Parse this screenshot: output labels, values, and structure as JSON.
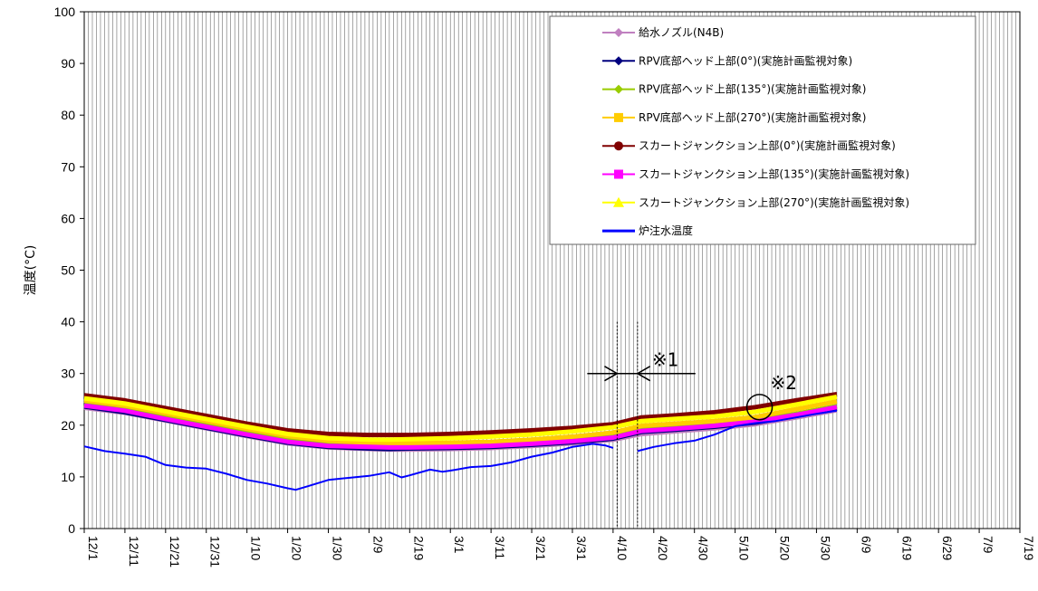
{
  "chart_data": {
    "type": "line",
    "title": "",
    "xlabel": "",
    "ylabel": "温度(°C)",
    "ylim": [
      0,
      100
    ],
    "y_ticks": [
      "0",
      "10",
      "20",
      "30",
      "40",
      "50",
      "60",
      "70",
      "80",
      "90",
      "100"
    ],
    "x_ticks": [
      "12/1",
      "12/11",
      "12/21",
      "12/31",
      "1/10",
      "1/20",
      "1/30",
      "2/9",
      "2/19",
      "3/1",
      "3/11",
      "3/21",
      "3/31",
      "4/10",
      "4/20",
      "4/30",
      "5/10",
      "5/20",
      "5/30",
      "6/9",
      "6/19",
      "6/29",
      "7/9",
      "7/19"
    ],
    "x_range_days": [
      0,
      230
    ],
    "grid": "vertical-daily",
    "legend_position": "top-right",
    "annotations": [
      {
        "id": "note1",
        "text": "※1",
        "type": "outage-interval",
        "from_day": 131,
        "to_day": 136
      },
      {
        "id": "note2",
        "text": "※2",
        "type": "circle",
        "day": 166,
        "y": 23.5
      }
    ],
    "series": [
      {
        "name": "給水ノズル(N4B)",
        "color": "#c080c0",
        "marker": "diamond",
        "x": [
          0,
          10,
          20,
          30,
          40,
          50,
          60,
          70,
          75,
          80,
          90,
          100,
          110,
          120,
          130,
          137,
          145,
          155,
          165,
          175,
          185
        ],
        "y": [
          23.3,
          22.3,
          20.8,
          19.3,
          17.8,
          16.4,
          15.6,
          15.3,
          15.2,
          15.2,
          15.3,
          15.5,
          15.9,
          16.4,
          17.1,
          18.2,
          18.7,
          19.3,
          20.1,
          21.4,
          22.8
        ]
      },
      {
        "name": "RPV底部ヘッド上部(0°)(実施計画監視対象)",
        "color": "#00007f",
        "marker": "diamond",
        "x": [
          0,
          10,
          20,
          30,
          40,
          50,
          60,
          70,
          75,
          80,
          90,
          100,
          110,
          120,
          130,
          137,
          145,
          155,
          165,
          175,
          185
        ],
        "y": [
          23.6,
          22.5,
          21.0,
          19.5,
          18.0,
          16.6,
          15.8,
          15.5,
          15.4,
          15.5,
          15.6,
          15.8,
          16.2,
          16.7,
          17.4,
          18.7,
          19.1,
          19.7,
          20.5,
          21.8,
          23.2
        ]
      },
      {
        "name": "RPV底部ヘッド上部(135°)(実施計画監視対象)",
        "color": "#99cc00",
        "marker": "diamond",
        "x": [
          0,
          10,
          20,
          30,
          40,
          50,
          60,
          70,
          75,
          80,
          90,
          100,
          110,
          120,
          130,
          137,
          145,
          155,
          165,
          175,
          185
        ],
        "y": [
          24.0,
          23.0,
          21.5,
          20.0,
          18.5,
          17.2,
          16.4,
          16.0,
          15.9,
          15.9,
          16.0,
          16.2,
          16.6,
          17.1,
          17.8,
          19.1,
          19.5,
          20.1,
          20.9,
          22.2,
          23.7
        ]
      },
      {
        "name": "RPV底部ヘッド上部(270°)(実施計画監視対象)",
        "color": "#ffcc00",
        "marker": "square",
        "x": [
          0,
          10,
          20,
          30,
          40,
          50,
          60,
          70,
          75,
          80,
          90,
          100,
          110,
          120,
          130,
          137,
          145,
          155,
          165,
          175,
          185
        ],
        "y": [
          24.8,
          23.8,
          22.3,
          20.8,
          19.3,
          17.9,
          17.0,
          16.6,
          16.4,
          16.5,
          16.6,
          16.8,
          17.2,
          17.8,
          18.6,
          19.9,
          20.3,
          20.8,
          21.6,
          23.1,
          24.6
        ]
      },
      {
        "name": "スカートジャンクション上部(0°)(実施計画監視対象)",
        "color": "#800000",
        "marker": "circle",
        "x": [
          0,
          10,
          20,
          30,
          40,
          50,
          60,
          70,
          75,
          80,
          90,
          100,
          110,
          120,
          130,
          137,
          145,
          155,
          165,
          175,
          185
        ],
        "y": [
          25.8,
          24.8,
          23.3,
          21.8,
          20.3,
          19.0,
          18.3,
          18.1,
          18.1,
          18.1,
          18.3,
          18.6,
          19.0,
          19.5,
          20.2,
          21.5,
          21.9,
          22.5,
          23.5,
          24.8,
          26.0
        ]
      },
      {
        "name": "スカートジャンクション上部(135°)(実施計画監視対象)",
        "color": "#ff00ff",
        "marker": "square",
        "x": [
          0,
          10,
          20,
          30,
          40,
          50,
          60,
          70,
          75,
          80,
          90,
          100,
          110,
          120,
          130,
          137,
          145,
          155,
          165,
          175,
          185
        ],
        "y": [
          23.8,
          22.8,
          21.2,
          19.7,
          18.2,
          16.8,
          16.0,
          15.8,
          15.7,
          15.7,
          15.8,
          16.0,
          16.4,
          16.9,
          17.6,
          18.9,
          19.3,
          19.9,
          20.7,
          22.0,
          23.5
        ]
      },
      {
        "name": "スカートジャンクション上部(270°)(実施計画監視対象)",
        "color": "#ffff00",
        "marker": "triangle",
        "x": [
          0,
          10,
          20,
          30,
          40,
          50,
          60,
          70,
          75,
          80,
          90,
          100,
          110,
          120,
          130,
          137,
          145,
          155,
          165,
          175,
          185
        ],
        "y": [
          25.2,
          24.2,
          22.7,
          21.2,
          19.7,
          18.3,
          17.5,
          17.2,
          17.2,
          17.3,
          17.5,
          17.8,
          18.2,
          18.8,
          19.6,
          20.8,
          21.2,
          21.7,
          22.6,
          24.0,
          25.5
        ]
      },
      {
        "name": "炉注水温度",
        "color": "#0000ff",
        "marker": "none",
        "x": [
          0,
          5,
          10,
          15,
          20,
          25,
          30,
          35,
          40,
          45,
          50,
          52,
          55,
          60,
          65,
          70,
          75,
          78,
          80,
          85,
          88,
          90,
          95,
          100,
          105,
          110,
          115,
          120,
          125,
          128,
          130,
          136,
          140,
          145,
          150,
          155,
          160,
          165,
          170,
          175,
          180,
          185
        ],
        "y": [
          15.9,
          15.0,
          14.5,
          13.9,
          12.3,
          11.8,
          11.6,
          10.6,
          9.4,
          8.7,
          7.8,
          7.5,
          8.2,
          9.4,
          9.8,
          10.2,
          10.9,
          9.9,
          10.3,
          11.4,
          11.0,
          11.2,
          11.9,
          12.1,
          12.8,
          13.9,
          14.7,
          15.8,
          16.4,
          16.1,
          15.6,
          15.0,
          15.8,
          16.5,
          17.0,
          18.2,
          19.8,
          20.4,
          20.8,
          21.5,
          22.2,
          22.8
        ]
      }
    ]
  }
}
